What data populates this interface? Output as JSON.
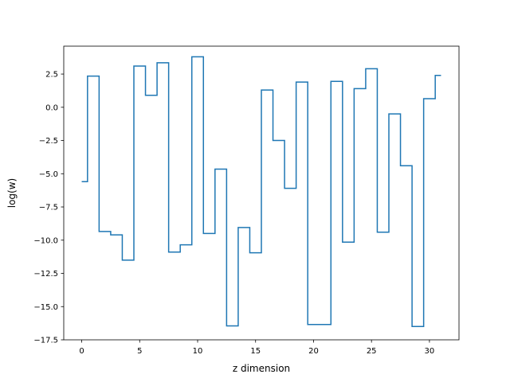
{
  "chart_data": {
    "type": "line",
    "drawstyle": "steps-mid",
    "title": "",
    "xlabel": "z dimension",
    "ylabel": "log(w)",
    "xlim": [
      -1.55,
      32.55
    ],
    "ylim": [
      -17.5,
      4.6
    ],
    "xticks": [
      0,
      5,
      10,
      15,
      20,
      25,
      30
    ],
    "yticks": [
      2.5,
      0.0,
      -2.5,
      -5.0,
      -7.5,
      -10.0,
      -12.5,
      -15.0,
      -17.5
    ],
    "ytick_labels": [
      "2.5",
      "0.0",
      "−2.5",
      "−5.0",
      "−7.5",
      "−10.0",
      "−12.5",
      "−15.0",
      "−17.5"
    ],
    "grid": false,
    "series": [
      {
        "color": "#1f77b4",
        "x": [
          0,
          1,
          2,
          3,
          4,
          5,
          6,
          7,
          8,
          9,
          10,
          11,
          12,
          13,
          14,
          15,
          16,
          17,
          18,
          19,
          20,
          21,
          22,
          23,
          24,
          25,
          26,
          27,
          28,
          29,
          30,
          31
        ],
        "y": [
          -5.6,
          2.35,
          -9.35,
          -9.6,
          -11.5,
          3.1,
          0.9,
          3.35,
          -10.9,
          -10.35,
          3.8,
          -9.5,
          -4.65,
          -16.45,
          -9.05,
          -10.95,
          1.3,
          -2.5,
          -6.1,
          1.9,
          -16.35,
          -16.35,
          1.95,
          -10.15,
          1.4,
          2.9,
          -9.4,
          -0.5,
          -4.4,
          -16.5,
          0.65,
          2.4
        ]
      }
    ]
  }
}
